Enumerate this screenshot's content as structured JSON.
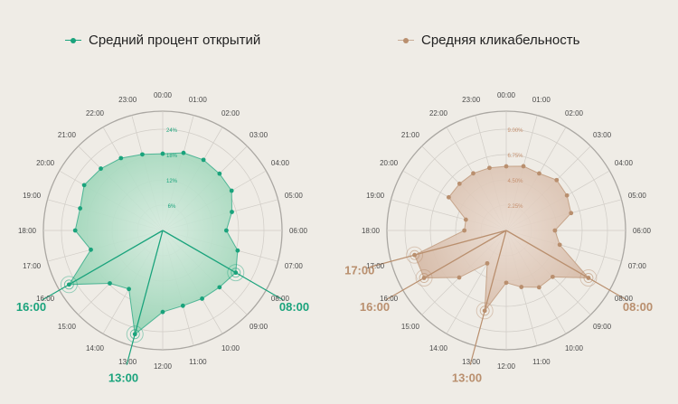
{
  "chart_data": [
    {
      "type": "radar",
      "title": "",
      "categories": [
        "00:00",
        "01:00",
        "02:00",
        "03:00",
        "04:00",
        "05:00",
        "06:00",
        "07:00",
        "08:00",
        "09:00",
        "10:00",
        "11:00",
        "12:00",
        "13:00",
        "14:00",
        "15:00",
        "16:00",
        "17:00",
        "18:00",
        "19:00",
        "20:00",
        "21:00",
        "22:00",
        "23:00"
      ],
      "radial_ticks": [
        "6%",
        "12%",
        "18%",
        "24%"
      ],
      "rmax": 30,
      "series": [
        {
          "name": "Средний процент открытий",
          "color": "#1aa37c",
          "values": [
            19.3,
            20.2,
            20.5,
            20.2,
            20.0,
            18.0,
            16.0,
            19.5,
            21.2,
            20.2,
            19.8,
            19.6,
            20.5,
            27.0,
            17.0,
            18.8,
            27.2,
            18.7,
            22.0,
            21.5,
            22.8,
            22.0,
            21.0,
            19.8
          ]
        },
        {
          "name": "Средняя кликабельность",
          "color": "#b98f6e",
          "values": [
            6.05,
            6.27,
            6.21,
            6.72,
            6.61,
            6.33,
            4.59,
            5.22,
            8.95,
            6.19,
            6.19,
            5.52,
            4.93,
            7.84,
            3.58,
            6.27,
            8.95,
            8.95,
            3.95,
            3.94,
            6.26,
            6.23,
            6.22,
            6.11
          ],
          "radial_ticks": [
            "2.25%",
            "4.50%",
            "6.75%",
            "9.00%"
          ],
          "rmax": 11.25
        }
      ],
      "highlights": [
        {
          "label": "16:00"
        },
        {
          "label": "13:00"
        },
        {
          "label": "08:00"
        }
      ]
    },
    {
      "highlights": [
        {
          "label": "17:00"
        },
        {
          "label": "16:00"
        },
        {
          "label": "13:00"
        },
        {
          "label": "08:00"
        }
      ]
    }
  ]
}
